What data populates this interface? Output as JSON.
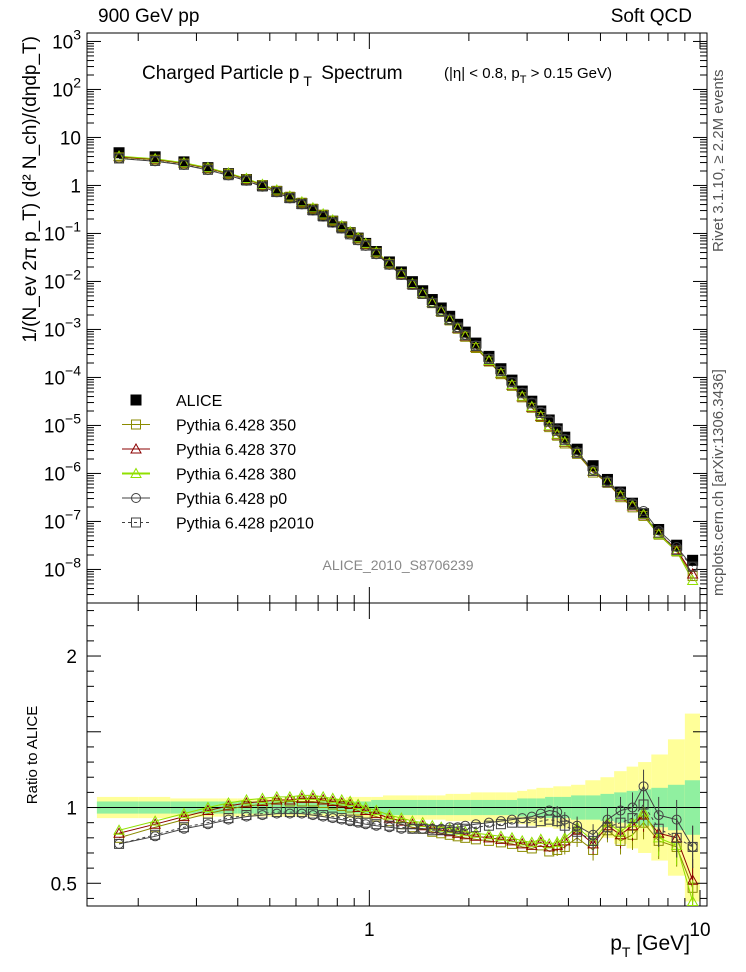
{
  "header": {
    "left": "900 GeV pp",
    "right": "Soft QCD"
  },
  "side_labels": {
    "rivet": "Rivet 3.1.10, ≥ 2.2M events",
    "url": "mcplots.cern.ch [arXiv:1306.3436]"
  },
  "chart_data": {
    "type": "scatter",
    "title": "Charged Particle p_T Spectrum",
    "subtitle": "(|η| < 0.8, p_T > 0.15 GeV)",
    "watermark": "ALICE_2010_S8706239",
    "xlabel": "p_T [GeV]",
    "ylabel": "1/(N_ev 2π p_T) (d² N_ch)/(dηdp_T)",
    "ratio_ylabel": "Ratio to ALICE",
    "x_scale": "log",
    "y_scale": "log",
    "xlim": [
      0.14,
      10.5
    ],
    "ylim": [
      2e-09,
      1500
    ],
    "ratio_ylim": [
      0.35,
      2.35
    ],
    "x_ticks": [
      "1",
      "10"
    ],
    "y_ticks": [
      "10^-8",
      "10^-7",
      "10^-6",
      "10^-5",
      "10^-4",
      "10^-3",
      "10^-2",
      "10^-1",
      "1",
      "10",
      "10^2",
      "10^3"
    ],
    "ratio_ticks": [
      "0.5",
      "1",
      "2"
    ],
    "x": [
      0.175,
      0.225,
      0.275,
      0.325,
      0.375,
      0.425,
      0.475,
      0.525,
      0.575,
      0.625,
      0.675,
      0.725,
      0.775,
      0.825,
      0.875,
      0.925,
      0.975,
      1.05,
      1.15,
      1.25,
      1.35,
      1.45,
      1.55,
      1.65,
      1.75,
      1.85,
      1.95,
      2.1,
      2.3,
      2.5,
      2.7,
      2.9,
      3.1,
      3.3,
      3.5,
      3.7,
      3.9,
      4.25,
      4.75,
      5.25,
      5.75,
      6.25,
      6.75,
      7.5,
      8.5,
      9.5
    ],
    "alice": [
      4.8,
      3.95,
      3.1,
      2.35,
      1.76,
      1.33,
      0.99,
      0.75,
      0.56,
      0.42,
      0.315,
      0.238,
      0.18,
      0.137,
      0.104,
      0.08,
      0.062,
      0.042,
      0.0255,
      0.0158,
      0.0099,
      0.0064,
      0.0042,
      0.0028,
      0.00188,
      0.00128,
      0.00088,
      0.00052,
      0.000275,
      0.000152,
      8.8e-05,
      5.2e-05,
      3.2e-05,
      2e-05,
      1.3e-05,
      8.5e-06,
      5.7e-06,
      3.2e-06,
      1.45e-06,
      7.5e-07,
      4.1e-07,
      2.4e-07,
      1.45e-07,
      6.8e-08,
      3.2e-08,
      1.55e-08
    ],
    "alice_stat_err": [
      0.04,
      0.04,
      0.04,
      0.04,
      0.04,
      0.04,
      0.04,
      0.04,
      0.04,
      0.04,
      0.04,
      0.04,
      0.04,
      0.04,
      0.04,
      0.04,
      0.04,
      0.05,
      0.05,
      0.05,
      0.05,
      0.05,
      0.05,
      0.05,
      0.05,
      0.05,
      0.05,
      0.05,
      0.05,
      0.05,
      0.05,
      0.06,
      0.06,
      0.06,
      0.07,
      0.07,
      0.07,
      0.08,
      0.08,
      0.09,
      0.1,
      0.11,
      0.12,
      0.13,
      0.15,
      0.18
    ],
    "alice_tot_err": [
      0.07,
      0.07,
      0.06,
      0.06,
      0.06,
      0.06,
      0.06,
      0.06,
      0.06,
      0.06,
      0.06,
      0.06,
      0.06,
      0.06,
      0.07,
      0.07,
      0.07,
      0.07,
      0.08,
      0.08,
      0.08,
      0.08,
      0.08,
      0.08,
      0.09,
      0.09,
      0.09,
      0.1,
      0.1,
      0.1,
      0.1,
      0.11,
      0.12,
      0.13,
      0.13,
      0.14,
      0.14,
      0.15,
      0.18,
      0.2,
      0.24,
      0.27,
      0.3,
      0.35,
      0.45,
      0.62
    ],
    "series": [
      {
        "name": "ALICE",
        "color": "#000000",
        "marker": "filled-square",
        "line": "none"
      },
      {
        "name": "Pythia 6.428 350",
        "color": "#8b8b00",
        "marker": "open-square",
        "line": "solid",
        "ratio": [
          0.8,
          0.87,
          0.92,
          0.96,
          0.99,
          1.01,
          1.02,
          1.03,
          1.04,
          1.04,
          1.04,
          1.03,
          1.02,
          1.01,
          1.0,
          0.98,
          0.96,
          0.94,
          0.91,
          0.89,
          0.87,
          0.86,
          0.84,
          0.83,
          0.82,
          0.81,
          0.8,
          0.79,
          0.78,
          0.77,
          0.76,
          0.74,
          0.73,
          0.75,
          0.71,
          0.72,
          0.74,
          0.8,
          0.72,
          0.85,
          0.78,
          0.82,
          0.9,
          0.78,
          0.74,
          0.47
        ]
      },
      {
        "name": "Pythia 6.428 370",
        "color": "#8b0000",
        "marker": "open-triangle",
        "line": "solid",
        "ratio": [
          0.83,
          0.89,
          0.94,
          0.98,
          1.01,
          1.03,
          1.04,
          1.05,
          1.05,
          1.06,
          1.06,
          1.05,
          1.04,
          1.03,
          1.02,
          1.0,
          0.98,
          0.96,
          0.93,
          0.91,
          0.89,
          0.88,
          0.86,
          0.85,
          0.84,
          0.83,
          0.82,
          0.81,
          0.8,
          0.79,
          0.78,
          0.76,
          0.75,
          0.77,
          0.74,
          0.75,
          0.78,
          0.85,
          0.76,
          0.88,
          0.82,
          0.88,
          0.95,
          0.83,
          0.8,
          0.52
        ]
      },
      {
        "name": "Pythia 6.428 380",
        "color": "#90e000",
        "marker": "open-triangle",
        "line": "solid",
        "ratio": [
          0.85,
          0.91,
          0.96,
          1.0,
          1.03,
          1.05,
          1.06,
          1.07,
          1.07,
          1.08,
          1.08,
          1.07,
          1.06,
          1.05,
          1.04,
          1.02,
          1.0,
          0.98,
          0.95,
          0.93,
          0.91,
          0.9,
          0.88,
          0.87,
          0.86,
          0.85,
          0.84,
          0.83,
          0.82,
          0.81,
          0.8,
          0.78,
          0.77,
          0.79,
          0.76,
          0.77,
          0.8,
          0.87,
          0.78,
          0.9,
          0.84,
          0.9,
          0.97,
          0.8,
          0.75,
          0.38
        ]
      },
      {
        "name": "Pythia 6.428 p0",
        "color": "#404040",
        "marker": "open-circle",
        "line": "solid",
        "ratio": [
          0.76,
          0.81,
          0.86,
          0.89,
          0.92,
          0.94,
          0.95,
          0.96,
          0.96,
          0.96,
          0.95,
          0.94,
          0.93,
          0.92,
          0.91,
          0.9,
          0.89,
          0.88,
          0.87,
          0.86,
          0.86,
          0.86,
          0.86,
          0.86,
          0.87,
          0.87,
          0.88,
          0.89,
          0.9,
          0.91,
          0.92,
          0.93,
          0.94,
          0.96,
          0.98,
          0.97,
          0.92,
          0.88,
          0.82,
          0.92,
          0.98,
          1.0,
          1.14,
          0.95,
          0.92,
          0.74
        ]
      },
      {
        "name": "Pythia 6.428 p2010",
        "color": "#404040",
        "marker": "open-square",
        "line": "dashed",
        "ratio": [
          0.76,
          0.82,
          0.87,
          0.9,
          0.93,
          0.95,
          0.96,
          0.97,
          0.97,
          0.97,
          0.96,
          0.95,
          0.94,
          0.93,
          0.92,
          0.91,
          0.9,
          0.89,
          0.88,
          0.87,
          0.86,
          0.86,
          0.85,
          0.85,
          0.85,
          0.86,
          0.86,
          0.87,
          0.88,
          0.89,
          0.9,
          0.9,
          0.9,
          0.91,
          0.92,
          0.91,
          0.88,
          0.84,
          0.78,
          0.87,
          0.9,
          0.93,
          1.02,
          0.86,
          0.8,
          0.74
        ]
      }
    ]
  }
}
